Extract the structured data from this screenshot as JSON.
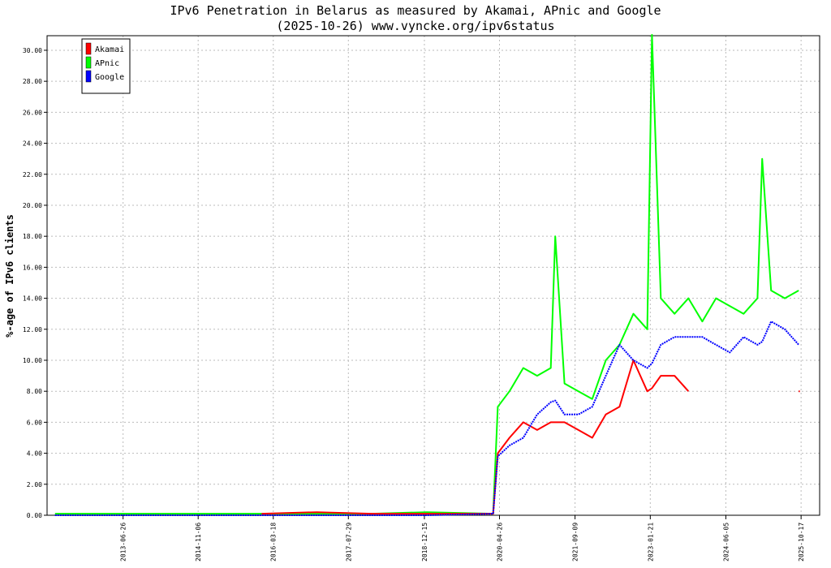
{
  "chart_data": {
    "type": "line",
    "title": "IPv6 Penetration in Belarus as measured by Akamai, APnic and Google",
    "subtitle": "(2025-10-26) www.vyncke.org/ipv6status",
    "y_label": "%-age of IPv6 clients",
    "xlim": [
      "2012-02-08",
      "2026-02-17"
    ],
    "xticks": [
      "2013-06-26",
      "2014-11-06",
      "2016-03-18",
      "2017-07-29",
      "2018-12-15",
      "2020-04-26",
      "2021-09-09",
      "2023-01-21",
      "2024-06-05",
      "2025-10-17"
    ],
    "ylim": [
      0,
      30.94
    ],
    "yticks": [
      {
        "value": 0,
        "label": "0.00"
      },
      {
        "value": 2,
        "label": "2.00"
      },
      {
        "value": 4,
        "label": "4.00"
      },
      {
        "value": 6,
        "label": "6.00"
      },
      {
        "value": 8,
        "label": "8.00"
      },
      {
        "value": 10,
        "label": "10.00"
      },
      {
        "value": 12,
        "label": "12.00"
      },
      {
        "value": 14,
        "label": "14.00"
      },
      {
        "value": 16,
        "label": "16.00"
      },
      {
        "value": 18,
        "label": "18.00"
      },
      {
        "value": 20,
        "label": "20.00"
      },
      {
        "value": 22,
        "label": "22.00"
      },
      {
        "value": 24,
        "label": "24.00"
      },
      {
        "value": 26,
        "label": "26.00"
      },
      {
        "value": 28,
        "label": "28.00"
      },
      {
        "value": 30,
        "label": "30.00"
      }
    ],
    "grid": true,
    "legend": "top-left",
    "x": [
      "2012-04-01",
      "2013-01-01",
      "2014-01-01",
      "2015-01-01",
      "2016-01-01",
      "2017-01-01",
      "2018-01-01",
      "2019-01-01",
      "2020-03-15",
      "2020-04-15",
      "2020-07-01",
      "2020-10-01",
      "2021-01-01",
      "2021-04-01",
      "2021-05-01",
      "2021-07-01",
      "2021-10-01",
      "2022-01-01",
      "2022-04-01",
      "2022-07-01",
      "2022-10-01",
      "2023-01-01",
      "2023-02-01",
      "2023-04-01",
      "2023-07-01",
      "2023-10-01",
      "2024-01-01",
      "2024-04-01",
      "2024-07-01",
      "2024-10-01",
      "2025-01-01",
      "2025-02-01",
      "2025-04-01",
      "2025-07-01",
      "2025-10-01"
    ],
    "series": [
      {
        "name": "Akamai",
        "color": "#ff0000",
        "values": [
          null,
          null,
          null,
          null,
          0.1,
          0.2,
          0.1,
          0.1,
          0.1,
          4,
          5,
          6,
          5.5,
          6,
          6,
          6,
          5.5,
          5,
          6.5,
          7,
          10,
          8,
          8.2,
          9,
          9,
          8,
          null,
          null,
          null,
          null,
          null,
          null,
          null,
          null,
          8
        ]
      },
      {
        "name": "APnic",
        "color": "#00ff00",
        "values": [
          0.1,
          0.1,
          0.1,
          0.1,
          0.1,
          0.1,
          0.1,
          0.2,
          0.1,
          7,
          8,
          9.5,
          9,
          9.5,
          18,
          8.5,
          8,
          7.5,
          10,
          11,
          13,
          12,
          31,
          14,
          13,
          14,
          12.5,
          14,
          13.5,
          13,
          14,
          23,
          14.5,
          14,
          14.5
        ]
      },
      {
        "name": "Google",
        "color": "#0000ff",
        "values": [
          0,
          0,
          0,
          0,
          0,
          0,
          0,
          0,
          0.1,
          3.8,
          4.5,
          5,
          6.5,
          7.3,
          7.4,
          6.5,
          6.5,
          7,
          9,
          11,
          10,
          9.5,
          9.8,
          11,
          11.5,
          11.5,
          11.5,
          11,
          10.5,
          11.5,
          11,
          11.2,
          12.5,
          12,
          11
        ]
      }
    ]
  }
}
